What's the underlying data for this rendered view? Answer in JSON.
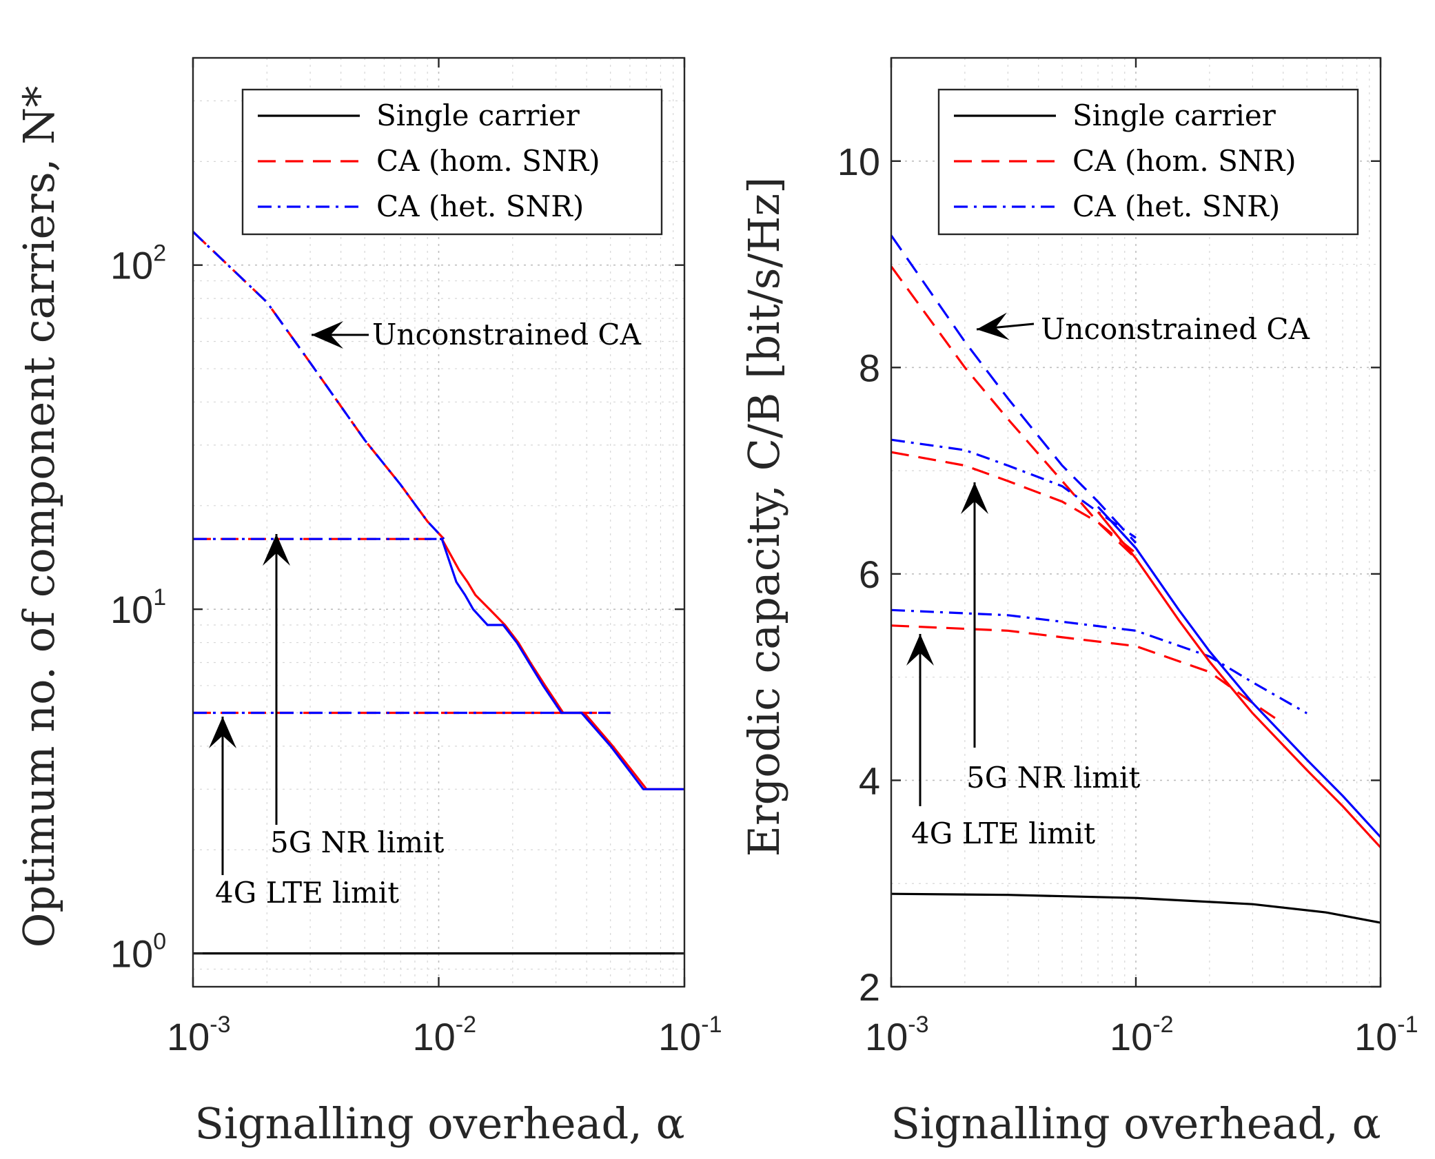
{
  "chart_data": [
    {
      "type": "line",
      "xscale": "log",
      "yscale": "log",
      "xlabel": "Signalling overhead, α",
      "ylabel": "Optimum no. of component carriers, N*",
      "xlim": [
        0.001,
        0.1
      ],
      "ylim": [
        0.8,
        400
      ],
      "xticks": [
        {
          "base": "10",
          "exp": "-3"
        },
        {
          "base": "10",
          "exp": "-2"
        },
        {
          "base": "10",
          "exp": "-1"
        }
      ],
      "yticks": [
        {
          "base": "10",
          "exp": "0"
        },
        {
          "base": "10",
          "exp": "1"
        },
        {
          "base": "10",
          "exp": "2"
        }
      ],
      "legend": [
        "Single carrier",
        "CA (hom. SNR)",
        "CA (het. SNR)"
      ],
      "annotations": [
        "Unconstrained CA",
        "5G NR limit",
        "4G LTE limit"
      ],
      "series": [
        {
          "name": "Single carrier",
          "color": "#000000",
          "style": "solid",
          "x": [
            0.001,
            0.1
          ],
          "y": [
            1,
            1
          ]
        },
        {
          "name": "Unconstrained CA (hom. SNR)",
          "color": "#ff0000",
          "style": "dashed",
          "x": [
            0.001,
            0.002,
            0.003,
            0.005,
            0.007,
            0.009,
            0.0105
          ],
          "y": [
            125,
            78,
            52,
            31,
            23,
            18,
            16
          ]
        },
        {
          "name": "Unconstrained CA (het. SNR)",
          "color": "#0000ff",
          "style": "dashdot",
          "x": [
            0.001,
            0.002,
            0.003,
            0.005,
            0.007,
            0.009,
            0.0105
          ],
          "y": [
            125,
            78,
            52,
            31,
            23,
            18,
            16
          ]
        },
        {
          "name": "5G NR limit (hom. SNR)",
          "color": "#ff0000",
          "style": "dashed",
          "x": [
            0.001,
            0.0098
          ],
          "y": [
            16,
            16
          ]
        },
        {
          "name": "5G NR limit (het. SNR)",
          "color": "#0000ff",
          "style": "dashdot",
          "x": [
            0.001,
            0.0098
          ],
          "y": [
            16,
            16
          ]
        },
        {
          "name": "4G LTE limit (hom. SNR)",
          "color": "#ff0000",
          "style": "dashed",
          "x": [
            0.001,
            0.05
          ],
          "y": [
            5,
            5
          ]
        },
        {
          "name": "4G LTE limit (het. SNR)",
          "color": "#0000ff",
          "style": "dashdot",
          "x": [
            0.001,
            0.05
          ],
          "y": [
            5,
            5
          ]
        },
        {
          "name": "Constrained CA (hom. SNR)",
          "color": "#ff0000",
          "style": "solid",
          "x": [
            0.0101,
            0.0103,
            0.0121,
            0.0121,
            0.0131,
            0.0131,
            0.0141,
            0.0141,
            0.0161,
            0.0161,
            0.0186,
            0.0186,
            0.0211,
            0.0211,
            0.0236,
            0.0236,
            0.0271,
            0.0271,
            0.0321,
            0.0321,
            0.0391,
            0.0391,
            0.0511,
            0.0511,
            0.0701,
            0.0701,
            0.1
          ],
          "y": [
            16,
            16,
            13,
            13,
            12,
            12,
            11,
            11,
            10,
            10,
            9,
            9,
            8,
            8,
            7,
            7,
            6,
            6,
            5,
            5,
            5,
            5,
            4,
            4,
            3,
            3,
            3
          ]
        },
        {
          "name": "Constrained CA (het. SNR)",
          "color": "#0000ff",
          "style": "solid",
          "x": [
            0.0101,
            0.0103,
            0.0118,
            0.0118,
            0.0128,
            0.0128,
            0.0138,
            0.0138,
            0.0158,
            0.0158,
            0.0183,
            0.0183,
            0.0208,
            0.0208,
            0.0233,
            0.0233,
            0.0266,
            0.0266,
            0.0316,
            0.0316,
            0.0381,
            0.0381,
            0.0501,
            0.0501,
            0.0681,
            0.0681,
            0.1
          ],
          "y": [
            16,
            16,
            12,
            12,
            11,
            11,
            10,
            10,
            9,
            9,
            9,
            9,
            8,
            8,
            7,
            7,
            6,
            6,
            5,
            5,
            5,
            5,
            4,
            4,
            3,
            3,
            3
          ]
        }
      ]
    },
    {
      "type": "line",
      "xscale": "log",
      "yscale": "linear",
      "xlabel": "Signalling overhead, α",
      "ylabel": "Ergodic capacity, C/B [bit/s/Hz]",
      "xlim": [
        0.001,
        0.1
      ],
      "ylim": [
        2,
        11
      ],
      "xticks": [
        {
          "base": "10",
          "exp": "-3"
        },
        {
          "base": "10",
          "exp": "-2"
        },
        {
          "base": "10",
          "exp": "-1"
        }
      ],
      "yticks": [
        {
          "value": 2,
          "label": "2"
        },
        {
          "value": 4,
          "label": "4"
        },
        {
          "value": 6,
          "label": "6"
        },
        {
          "value": 8,
          "label": "8"
        },
        {
          "value": 10,
          "label": "10"
        }
      ],
      "legend": [
        "Single carrier",
        "CA (hom. SNR)",
        "CA (het. SNR)"
      ],
      "annotations": [
        "Unconstrained CA",
        "5G NR limit",
        "4G LTE limit"
      ],
      "series": [
        {
          "name": "Single carrier",
          "color": "#000000",
          "style": "solid",
          "x": [
            0.001,
            0.003,
            0.01,
            0.03,
            0.06,
            0.1
          ],
          "y": [
            2.9,
            2.89,
            2.86,
            2.8,
            2.72,
            2.62
          ]
        },
        {
          "name": "Unconstrained CA (hom. SNR)",
          "color": "#ff0000",
          "style": "dashed",
          "x": [
            0.001,
            0.002,
            0.003,
            0.005,
            0.007,
            0.01
          ],
          "y": [
            8.98,
            8.0,
            7.5,
            6.9,
            6.5,
            6.15
          ]
        },
        {
          "name": "Unconstrained CA (het. SNR)",
          "color": "#0000ff",
          "style": "dashed",
          "x": [
            0.001,
            0.002,
            0.003,
            0.005,
            0.007,
            0.01
          ],
          "y": [
            9.28,
            8.25,
            7.7,
            7.05,
            6.7,
            6.3
          ]
        },
        {
          "name": "5G NR limit (hom. SNR)",
          "color": "#ff0000",
          "style": "dashed",
          "x": [
            0.001,
            0.002,
            0.003,
            0.005,
            0.007,
            0.01
          ],
          "y": [
            7.18,
            7.05,
            6.9,
            6.7,
            6.5,
            6.2
          ]
        },
        {
          "name": "5G NR limit (het. SNR)",
          "color": "#0000ff",
          "style": "dashdot",
          "x": [
            0.001,
            0.002,
            0.003,
            0.005,
            0.007,
            0.01
          ],
          "y": [
            7.3,
            7.2,
            7.05,
            6.85,
            6.6,
            6.35
          ]
        },
        {
          "name": "4G LTE limit (hom. SNR)",
          "color": "#ff0000",
          "style": "dashed",
          "x": [
            0.001,
            0.003,
            0.01,
            0.02,
            0.03,
            0.04
          ],
          "y": [
            5.5,
            5.45,
            5.3,
            5.05,
            4.75,
            4.55
          ]
        },
        {
          "name": "4G LTE limit (het. SNR)",
          "color": "#0000ff",
          "style": "dashdot",
          "x": [
            0.001,
            0.003,
            0.01,
            0.02,
            0.03,
            0.05
          ],
          "y": [
            5.65,
            5.6,
            5.45,
            5.2,
            4.95,
            4.65
          ]
        },
        {
          "name": "Constrained CA (hom. SNR)",
          "color": "#ff0000",
          "style": "solid",
          "x": [
            0.007,
            0.01,
            0.015,
            0.02,
            0.03,
            0.05,
            0.07,
            0.1
          ],
          "y": [
            6.6,
            6.15,
            5.55,
            5.15,
            4.65,
            4.1,
            3.75,
            3.35
          ]
        },
        {
          "name": "Constrained CA (het. SNR)",
          "color": "#0000ff",
          "style": "solid",
          "x": [
            0.007,
            0.01,
            0.015,
            0.02,
            0.03,
            0.05,
            0.07,
            0.1
          ],
          "y": [
            6.65,
            6.25,
            5.65,
            5.25,
            4.75,
            4.2,
            3.85,
            3.45
          ]
        }
      ]
    }
  ]
}
